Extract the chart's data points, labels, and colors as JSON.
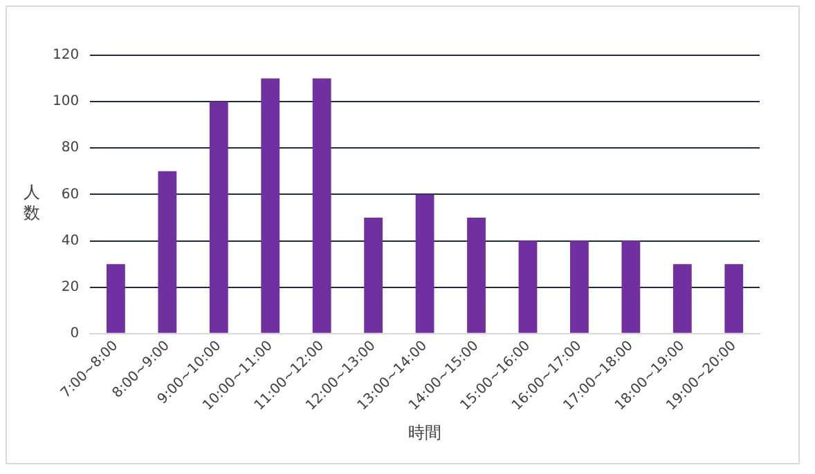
{
  "chart_data": {
    "type": "bar",
    "xlabel": "時間",
    "ylabel": "人数",
    "categories": [
      "7:00~8:00",
      "8:00~9:00",
      "9:00~10:00",
      "10:00~11:00",
      "11:00~12:00",
      "12:00~13:00",
      "13:00~14:00",
      "14:00~15:00",
      "15:00~16:00",
      "16:00~17:00",
      "17:00~18:00",
      "18:00~19:00",
      "19:00~20:00"
    ],
    "values": [
      30,
      70,
      100,
      110,
      110,
      50,
      60,
      50,
      40,
      40,
      40,
      30,
      30
    ],
    "color": "#7030a0",
    "ylim": [
      0,
      120
    ],
    "yticks": [
      0,
      20,
      40,
      60,
      80,
      100,
      120
    ],
    "grid": "y",
    "legend": false
  }
}
